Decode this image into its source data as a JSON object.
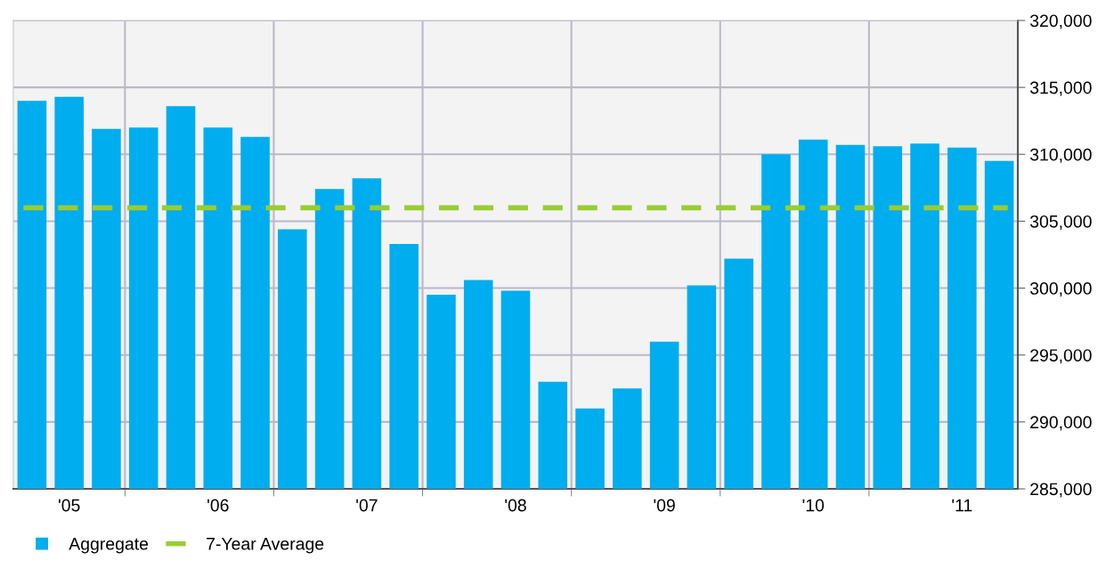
{
  "chart_data": {
    "type": "bar",
    "categories": [
      null,
      "'05",
      null,
      null,
      null,
      "'06",
      null,
      null,
      null,
      "'07",
      null,
      null,
      null,
      "'08",
      null,
      null,
      null,
      "'09",
      null,
      null,
      null,
      "'10",
      null,
      null,
      null,
      "'11",
      null
    ],
    "series": [
      {
        "name": "Aggregate",
        "color": "#00adee",
        "values": [
          314000,
          314300,
          311900,
          312000,
          313600,
          312000,
          311300,
          304400,
          307400,
          308200,
          303300,
          299500,
          300600,
          299800,
          293000,
          291000,
          292500,
          296000,
          300200,
          302200,
          310000,
          311100,
          310700,
          310600,
          310800,
          310500,
          309500
        ]
      }
    ],
    "ylim": [
      285000,
      320000
    ],
    "yticks": [
      {
        "value": 285000,
        "label": "285,000"
      },
      {
        "value": 290000,
        "label": "290,000"
      },
      {
        "value": 295000,
        "label": "295,000"
      },
      {
        "value": 300000,
        "label": "300,000"
      },
      {
        "value": 305000,
        "label": "305,000"
      },
      {
        "value": 310000,
        "label": "310,000"
      },
      {
        "value": 315000,
        "label": "315,000"
      },
      {
        "value": 320000,
        "label": "320,000"
      }
    ],
    "ref_lines": [
      {
        "axis": "y",
        "value": 306000,
        "label": "7-Year Average",
        "color": "#99cc33",
        "line_style": "dashed"
      }
    ],
    "grid": true,
    "legend": "bottom left"
  }
}
